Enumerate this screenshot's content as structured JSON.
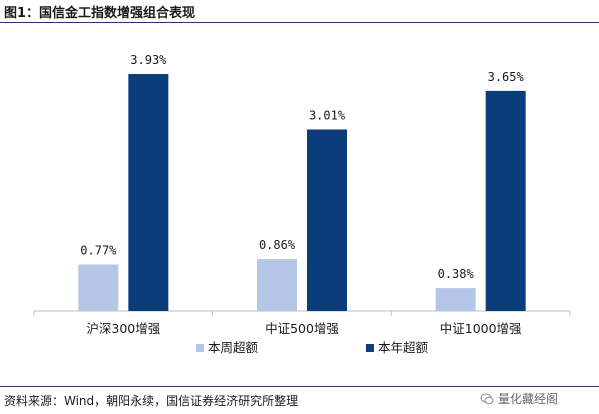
{
  "figure_title": "图1：国信金工指数增强组合表现",
  "source_note": "资料来源：Wind，朝阳永续，国信证券经济研究所整理",
  "watermark": "量化藏经阁",
  "colors": {
    "weekly": "#b4c7e7",
    "annual": "#0a3d7a",
    "axis": "#bfbfbf"
  },
  "chart_data": {
    "type": "bar",
    "title": "",
    "categories": [
      "沪深300增强",
      "中证500增强",
      "中证1000增强"
    ],
    "series": [
      {
        "name": "本周超额",
        "values": [
          0.77,
          0.86,
          0.38
        ],
        "labels": [
          "0.77%",
          "0.86%",
          "0.38%"
        ]
      },
      {
        "name": "本年超额",
        "values": [
          3.93,
          3.01,
          3.65
        ],
        "labels": [
          "3.93%",
          "3.01%",
          "3.65%"
        ]
      }
    ],
    "ylim": [
      0,
      4.6
    ],
    "grid": false,
    "legend_position": "bottom-center"
  }
}
